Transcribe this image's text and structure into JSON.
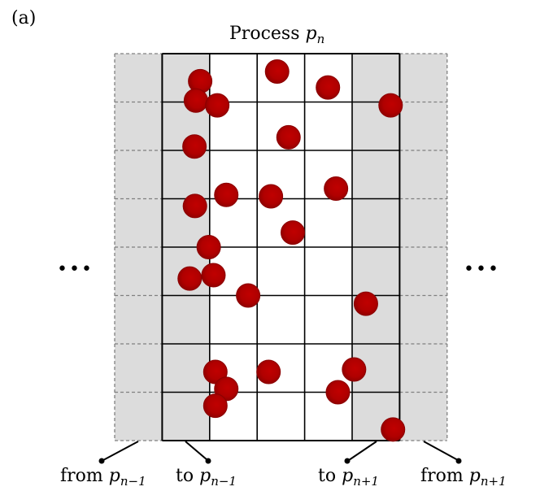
{
  "panel_label": "(a)",
  "title": {
    "prefix": "Process ",
    "var": "p",
    "sub": "n"
  },
  "ellipsis": "•••",
  "labels": {
    "from_prev": {
      "word": "from ",
      "var": "p",
      "sub": "n−1"
    },
    "to_prev": {
      "word": "to ",
      "var": "p",
      "sub": "n−1"
    },
    "to_next": {
      "word": "to ",
      "var": "p",
      "sub": "n+1"
    },
    "from_next": {
      "word": "from ",
      "var": "p",
      "sub": "n+1"
    }
  },
  "colors": {
    "ghost_fill": "#dcdcdc",
    "ghost_line": "#808080",
    "grid_line": "#000000",
    "particle_edge": "#8b0000",
    "particle_core": "#c00000"
  },
  "grid": {
    "columns": 7,
    "rows": 8,
    "ghost_columns": [
      0,
      6
    ],
    "halo_columns": [
      1,
      5
    ]
  },
  "particles": [
    {
      "col": 1.8,
      "row": 0.57
    },
    {
      "col": 1.71,
      "row": 0.97
    },
    {
      "col": 2.16,
      "row": 1.07
    },
    {
      "col": 3.42,
      "row": 0.37
    },
    {
      "col": 4.49,
      "row": 0.7
    },
    {
      "col": 5.81,
      "row": 1.07
    },
    {
      "col": 3.66,
      "row": 1.73
    },
    {
      "col": 1.68,
      "row": 1.92
    },
    {
      "col": 2.35,
      "row": 2.92
    },
    {
      "col": 3.29,
      "row": 2.95
    },
    {
      "col": 4.66,
      "row": 2.79
    },
    {
      "col": 1.69,
      "row": 3.15
    },
    {
      "col": 3.75,
      "row": 3.7
    },
    {
      "col": 1.98,
      "row": 4.0
    },
    {
      "col": 1.58,
      "row": 4.65
    },
    {
      "col": 2.08,
      "row": 4.58
    },
    {
      "col": 2.81,
      "row": 5.0
    },
    {
      "col": 5.29,
      "row": 5.17
    },
    {
      "col": 2.12,
      "row": 6.58
    },
    {
      "col": 2.35,
      "row": 6.93
    },
    {
      "col": 3.24,
      "row": 6.58
    },
    {
      "col": 5.04,
      "row": 6.53
    },
    {
      "col": 4.7,
      "row": 7.0
    },
    {
      "col": 2.12,
      "row": 7.28
    },
    {
      "col": 5.86,
      "row": 7.77
    }
  ]
}
